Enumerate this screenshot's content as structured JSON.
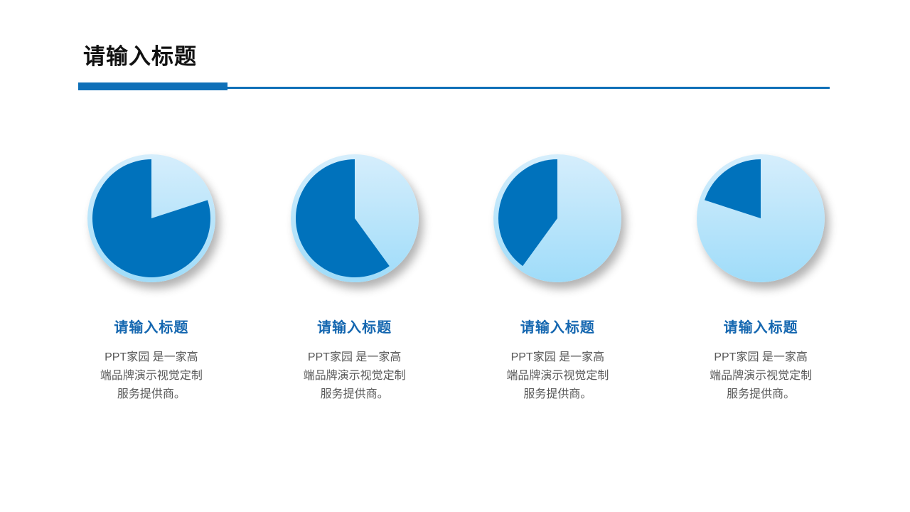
{
  "slide": {
    "title": "请输入标题"
  },
  "colors": {
    "accent": "#0f70b8",
    "pie_fill": "#0072bc",
    "circle_top": "#d6eefc",
    "circle_bottom": "#9fdcf9",
    "heading_color": "#1567b0",
    "body_color": "#595959",
    "title_color": "#111111"
  },
  "columns": [
    {
      "percent": 80,
      "heading": "请输入标题",
      "body_lines": [
        "PPT家园 是一家高",
        "端品牌演示视觉定制",
        "服务提供商。"
      ]
    },
    {
      "percent": 60,
      "heading": "请输入标题",
      "body_lines": [
        "PPT家园 是一家高",
        "端品牌演示视觉定制",
        "服务提供商。"
      ]
    },
    {
      "percent": 40,
      "heading": "请输入标题",
      "body_lines": [
        "PPT家园 是一家高",
        "端品牌演示视觉定制",
        "服务提供商。"
      ]
    },
    {
      "percent": 20,
      "heading": "请输入标题",
      "body_lines": [
        "PPT家园 是一家高",
        "端品牌演示视觉定制",
        "服务提供商。"
      ]
    }
  ],
  "chart_data": [
    {
      "type": "pie",
      "title": "请输入标题",
      "series": [
        {
          "name": "filled",
          "value": 80
        },
        {
          "name": "empty",
          "value": 20
        }
      ],
      "start_angle_deg": 0,
      "direction": "filled slice ends at 12 o'clock, gap drawn clockwise from top",
      "colors": {
        "filled": "#0072bc",
        "empty": "gradient #d6eefc → #9fdcf9"
      }
    },
    {
      "type": "pie",
      "title": "请输入标题",
      "series": [
        {
          "name": "filled",
          "value": 60
        },
        {
          "name": "empty",
          "value": 40
        }
      ],
      "start_angle_deg": 0,
      "direction": "filled slice ends at 12 o'clock, gap drawn clockwise from top",
      "colors": {
        "filled": "#0072bc",
        "empty": "gradient #d6eefc → #9fdcf9"
      }
    },
    {
      "type": "pie",
      "title": "请输入标题",
      "series": [
        {
          "name": "filled",
          "value": 40
        },
        {
          "name": "empty",
          "value": 60
        }
      ],
      "start_angle_deg": 0,
      "direction": "filled slice ends at 12 o'clock, gap drawn clockwise from top",
      "colors": {
        "filled": "#0072bc",
        "empty": "gradient #d6eefc → #9fdcf9"
      }
    },
    {
      "type": "pie",
      "title": "请输入标题",
      "series": [
        {
          "name": "filled",
          "value": 20
        },
        {
          "name": "empty",
          "value": 80
        }
      ],
      "start_angle_deg": 0,
      "direction": "filled slice ends at 12 o'clock, gap drawn clockwise from top",
      "colors": {
        "filled": "#0072bc",
        "empty": "gradient #d6eefc → #9fdcf9"
      }
    }
  ]
}
